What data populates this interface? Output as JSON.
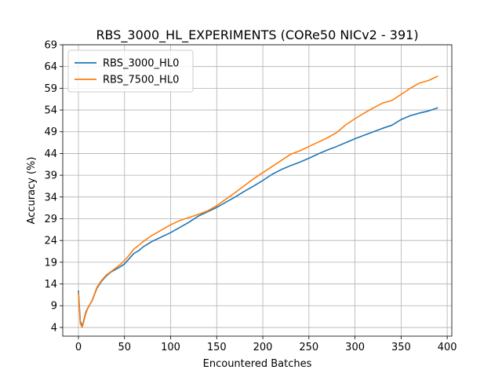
{
  "chart_data": {
    "type": "line",
    "title": "RBS_3000_HL_EXPERIMENTS (CORe50 NICv2 - 391)",
    "xlabel": "Encountered Batches",
    "ylabel": "Accuracy (%)",
    "xlim": [
      -17,
      405
    ],
    "ylim": [
      2,
      69
    ],
    "xticks": [
      0,
      50,
      100,
      150,
      200,
      250,
      300,
      350,
      400
    ],
    "yticks": [
      4,
      9,
      14,
      19,
      24,
      29,
      34,
      39,
      44,
      49,
      54,
      59,
      64,
      69
    ],
    "grid": true,
    "legend_position": "top-left",
    "series": [
      {
        "name": "RBS_3000_HL0",
        "color": "#1f77b4",
        "x": [
          0,
          2,
          4,
          6,
          8,
          10,
          15,
          20,
          25,
          30,
          35,
          40,
          45,
          50,
          55,
          60,
          65,
          70,
          80,
          90,
          100,
          110,
          120,
          130,
          140,
          150,
          160,
          170,
          180,
          190,
          200,
          210,
          220,
          230,
          240,
          250,
          260,
          270,
          280,
          290,
          300,
          310,
          320,
          330,
          340,
          350,
          360,
          370,
          380,
          390
        ],
        "y": [
          12.5,
          5.5,
          4.2,
          5.8,
          7.5,
          8.4,
          10.2,
          13.0,
          14.6,
          15.8,
          16.7,
          17.3,
          17.9,
          18.6,
          19.8,
          21.0,
          21.6,
          22.5,
          23.8,
          24.8,
          25.8,
          27.0,
          28.2,
          29.6,
          30.6,
          31.6,
          32.8,
          34.0,
          35.3,
          36.5,
          37.8,
          39.2,
          40.3,
          41.2,
          42.0,
          42.9,
          43.9,
          44.8,
          45.6,
          46.5,
          47.4,
          48.2,
          49.0,
          49.8,
          50.5,
          51.8,
          52.7,
          53.3,
          53.8,
          54.5
        ]
      },
      {
        "name": "RBS_7500_HL0",
        "color": "#ff7f0e",
        "x": [
          0,
          2,
          4,
          6,
          8,
          10,
          15,
          20,
          25,
          30,
          35,
          40,
          45,
          50,
          55,
          60,
          65,
          70,
          80,
          90,
          100,
          110,
          120,
          130,
          140,
          150,
          160,
          170,
          180,
          190,
          200,
          210,
          220,
          230,
          240,
          250,
          260,
          270,
          280,
          290,
          300,
          310,
          320,
          330,
          340,
          350,
          360,
          370,
          380,
          390
        ],
        "y": [
          12.0,
          5.0,
          4.0,
          5.5,
          7.2,
          8.3,
          10.3,
          13.2,
          14.8,
          16.0,
          16.8,
          17.6,
          18.4,
          19.4,
          20.6,
          22.0,
          22.8,
          23.7,
          25.2,
          26.4,
          27.6,
          28.6,
          29.3,
          30.0,
          30.8,
          32.0,
          33.5,
          35.0,
          36.6,
          38.2,
          39.6,
          41.0,
          42.4,
          43.8,
          44.6,
          45.6,
          46.6,
          47.6,
          48.8,
          50.6,
          52.0,
          53.3,
          54.5,
          55.6,
          56.2,
          57.6,
          59.0,
          60.2,
          60.8,
          61.8
        ]
      }
    ]
  }
}
